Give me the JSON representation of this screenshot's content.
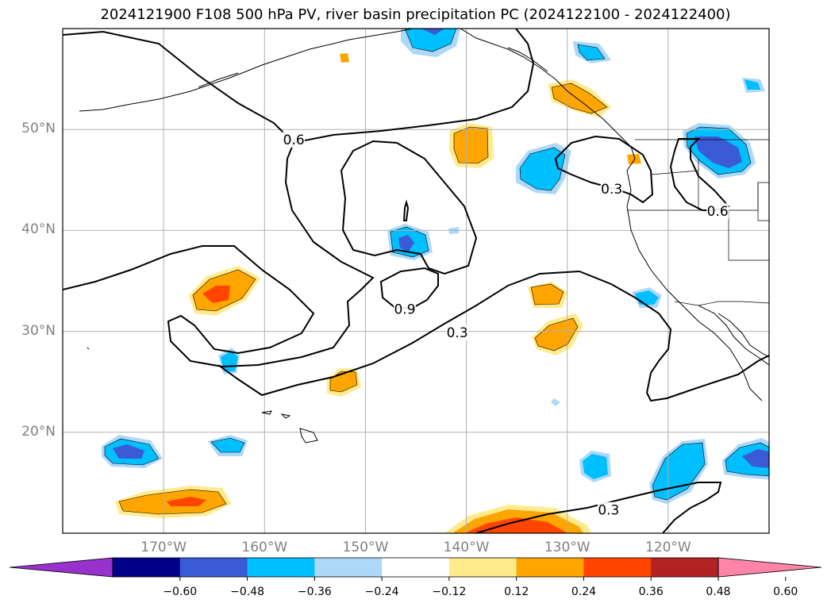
{
  "title": "2024121900 F108 500 hPa PV, river basin precipitation PC (2024122100 - 2024122400)",
  "map": {
    "lon_range": [
      -180,
      -110
    ],
    "lat_range": [
      10,
      60
    ],
    "grid": true,
    "lat_labels": [
      {
        "lat": 50,
        "text": "50°N"
      },
      {
        "lat": 40,
        "text": "40°N"
      },
      {
        "lat": 30,
        "text": "30°N"
      },
      {
        "lat": 20,
        "text": "20°N"
      }
    ],
    "lon_labels": [
      {
        "lon": -170,
        "text": "170°W"
      },
      {
        "lon": -160,
        "text": "160°W"
      },
      {
        "lon": -150,
        "text": "150°W"
      },
      {
        "lon": -140,
        "text": "140°W"
      },
      {
        "lon": -130,
        "text": "130°W"
      },
      {
        "lon": -120,
        "text": "120°W"
      }
    ],
    "contour_labels": [
      {
        "text": "0.6",
        "lon": -157.1,
        "lat": 49.0
      },
      {
        "text": "0.3",
        "lon": -125.6,
        "lat": 44.1
      },
      {
        "text": "0.6",
        "lon": -115.1,
        "lat": 41.9
      },
      {
        "text": "0.9",
        "lon": -146.1,
        "lat": 32.2
      },
      {
        "text": "0.3",
        "lon": -140.9,
        "lat": 29.9
      },
      {
        "text": "0.3",
        "lon": -125.9,
        "lat": 12.3
      }
    ]
  },
  "colorbar": {
    "colors": [
      "#9932cc",
      "#00008b",
      "#3b5bd6",
      "#00bfff",
      "#add8f7",
      "#ffffff",
      "#ffeb8c",
      "#ffa500",
      "#ff4500",
      "#b22222",
      "#ff85a8"
    ],
    "ticks": [
      "−0.60",
      "−0.48",
      "−0.36",
      "−0.24",
      "−0.12",
      "0.12",
      "0.24",
      "0.36",
      "0.48",
      "0.60"
    ]
  }
}
